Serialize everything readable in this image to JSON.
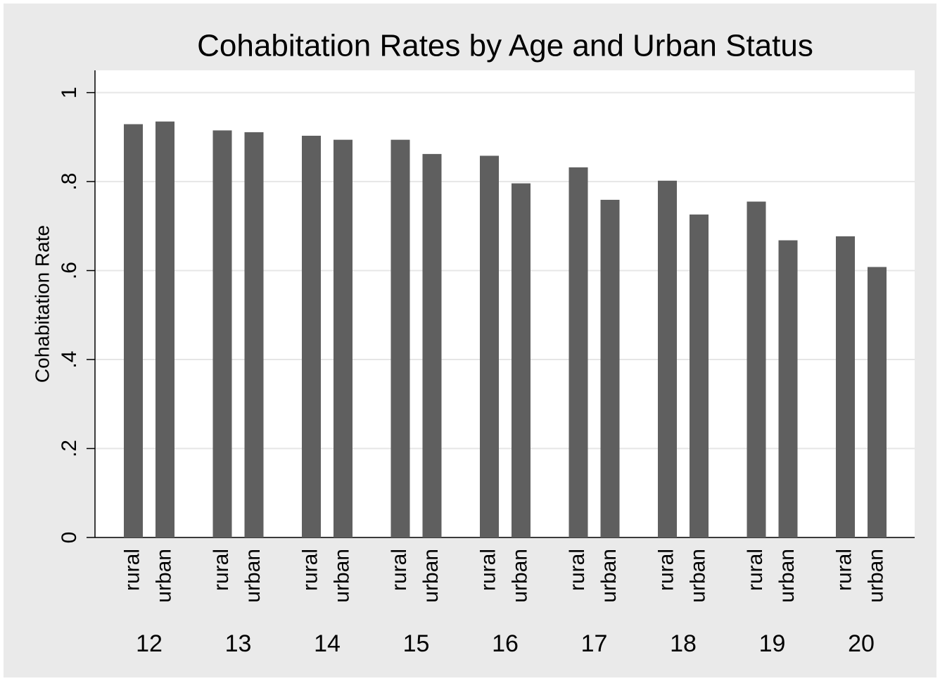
{
  "chart_data": {
    "type": "grouped-bar",
    "title": "Cohabitation Rates by Age and Urban Status",
    "y_label": "Cohabitation Rate",
    "categories": [
      "12",
      "13",
      "14",
      "15",
      "16",
      "17",
      "18",
      "19",
      "20"
    ],
    "series": [
      {
        "name": "rural",
        "color": "#5f5f5f",
        "values": [
          0.929,
          0.915,
          0.903,
          0.894,
          0.858,
          0.832,
          0.802,
          0.755,
          0.677
        ]
      },
      {
        "name": "urban",
        "color": "#5f5f5f",
        "values": [
          0.935,
          0.911,
          0.894,
          0.862,
          0.796,
          0.759,
          0.726,
          0.668,
          0.608
        ]
      }
    ],
    "ylim": [
      0,
      1.05
    ],
    "yticks": [
      0,
      {
        "value": 0.2,
        "label": ".2"
      },
      {
        "value": 0.4,
        "label": ".4"
      },
      {
        "value": 0.6,
        "label": ".6"
      },
      {
        "value": 0.8,
        "label": ".8"
      },
      1
    ],
    "grid": true
  }
}
